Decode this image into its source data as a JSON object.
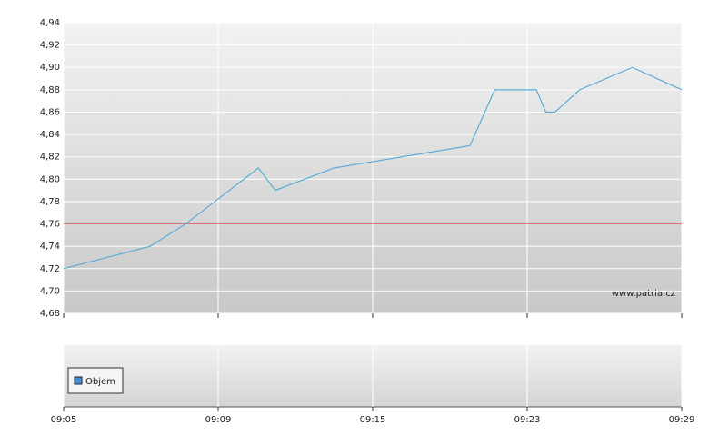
{
  "chart_data": {
    "type": "line",
    "x": [
      0,
      0.56,
      0.79,
      1.26,
      1.37,
      1.75,
      2.63,
      2.79,
      3.06,
      3.12,
      3.18,
      3.34,
      3.68,
      4
    ],
    "series": [
      {
        "color": "#5aaed6",
        "values": [
          4.72,
          4.74,
          4.76,
          4.81,
          4.79,
          4.81,
          4.83,
          4.88,
          4.88,
          4.86,
          4.86,
          4.88,
          4.9,
          4.88
        ]
      }
    ],
    "xlim": [
      0,
      4
    ],
    "xticks": [
      {
        "value": 0,
        "label": "09:05"
      },
      {
        "value": 1,
        "label": "09:09"
      },
      {
        "value": 2,
        "label": "09:15"
      },
      {
        "value": 3,
        "label": "09:23"
      },
      {
        "value": 4,
        "label": "09:29"
      }
    ],
    "ylim": [
      4.68,
      4.94
    ],
    "yticks": [
      {
        "value": 4.68,
        "label": "4,68"
      },
      {
        "value": 4.7,
        "label": "4,70"
      },
      {
        "value": 4.72,
        "label": "4,72"
      },
      {
        "value": 4.74,
        "label": "4,74"
      },
      {
        "value": 4.76,
        "label": "4,76"
      },
      {
        "value": 4.78,
        "label": "4,78"
      },
      {
        "value": 4.8,
        "label": "4,80"
      },
      {
        "value": 4.82,
        "label": "4,82"
      },
      {
        "value": 4.84,
        "label": "4,84"
      },
      {
        "value": 4.86,
        "label": "4,86"
      },
      {
        "value": 4.88,
        "label": "4,88"
      },
      {
        "value": 4.9,
        "label": "4,90"
      },
      {
        "value": 4.92,
        "label": "4,92"
      },
      {
        "value": 4.94,
        "label": "4,94"
      }
    ],
    "grid": true,
    "reference_line": 4.76,
    "reference_color": "#e07a7a",
    "watermark": "www.patria.cz",
    "volume": {
      "name": "Objem",
      "color": "#3d8fd1"
    }
  }
}
